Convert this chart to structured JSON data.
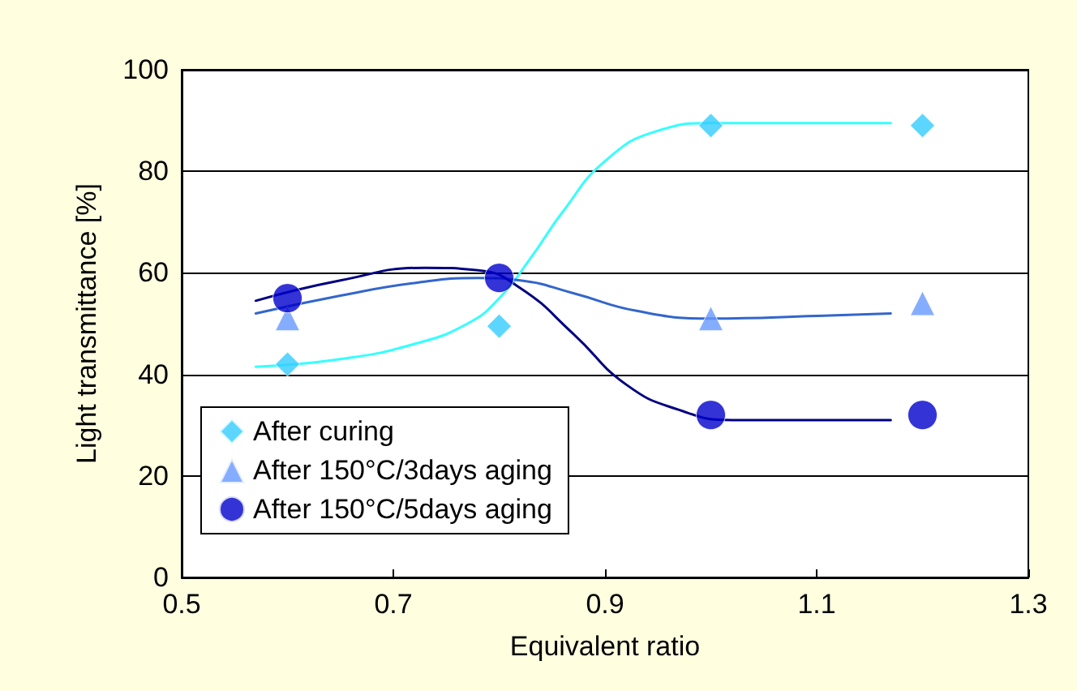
{
  "chart_data": {
    "type": "scatter",
    "xlabel": "Equivalent ratio",
    "ylabel": "Light transmittance [%]",
    "xlim": [
      0.5,
      1.3
    ],
    "xticks": [
      0.5,
      0.7,
      0.9,
      1.1,
      1.3
    ],
    "ylim": [
      0,
      100
    ],
    "yticks": [
      0,
      20,
      40,
      60,
      80,
      100
    ],
    "grid": "y",
    "legend": "bottom left",
    "x": [
      0.6,
      0.8,
      1.0,
      1.2
    ],
    "series": [
      {
        "name": "After curing",
        "color": "#33ccff",
        "marker": "diamond",
        "values": [
          42,
          49.5,
          89,
          89
        ]
      },
      {
        "name": "After 150°C/3days aging",
        "color": "#6699ff",
        "marker": "triangle",
        "values": [
          51,
          null,
          51,
          54
        ]
      },
      {
        "name": "After 150°C/5days aging",
        "color": "#0000cc",
        "marker": "circle",
        "values": [
          55,
          59,
          32,
          32
        ]
      },
      {
        "type": "line",
        "color": "#33ffff",
        "marker": "none",
        "x": [
          0.57,
          0.65,
          0.72,
          0.77,
          0.8,
          0.83,
          0.86,
          0.9,
          0.95,
          1.0,
          1.1,
          1.17
        ],
        "values": [
          41.5,
          43,
          46,
          50,
          55,
          63,
          72,
          82,
          88,
          89.5,
          89.5,
          89.5
        ]
      },
      {
        "type": "line",
        "color": "#3366cc",
        "marker": "none",
        "x": [
          0.57,
          0.65,
          0.72,
          0.78,
          0.82,
          0.87,
          0.93,
          1.0,
          1.1,
          1.17
        ],
        "values": [
          52,
          55.5,
          58,
          59,
          58.5,
          56,
          52.5,
          51,
          51.5,
          52
        ]
      },
      {
        "type": "line",
        "color": "#000080",
        "marker": "none",
        "x": [
          0.57,
          0.65,
          0.73,
          0.78,
          0.82,
          0.87,
          0.92,
          0.97,
          1.02,
          1.1,
          1.17
        ],
        "values": [
          54.5,
          58.5,
          61,
          60.5,
          57,
          48,
          38,
          33,
          31,
          31,
          31
        ]
      }
    ]
  }
}
